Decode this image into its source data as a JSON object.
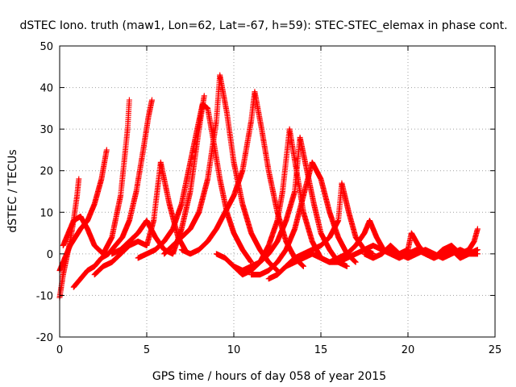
{
  "chart_data": {
    "type": "scatter",
    "title": "dSTEC Iono. truth (maw1, Lon=62, Lat=-67, h=59): STEC-STEC_elemax in phase cont.",
    "xlabel": "GPS time / hours of day 058 of year 2015",
    "ylabel": "dSTEC  / TECUs",
    "xlim": [
      0,
      25
    ],
    "ylim": [
      -20,
      50
    ],
    "xticks": [
      0,
      5,
      10,
      15,
      20,
      25
    ],
    "yticks": [
      -20,
      -10,
      0,
      10,
      20,
      30,
      40,
      50
    ],
    "grid": true,
    "marker": "+",
    "color": "#ff0000",
    "series": [
      {
        "x": [
          0.0,
          0.2,
          0.4,
          0.6,
          0.8,
          1.0,
          1.1
        ],
        "y": [
          -10.5,
          -5,
          -1,
          3,
          8,
          14,
          18
        ]
      },
      {
        "x": [
          0.0,
          0.3,
          0.6,
          0.9,
          1.2,
          1.6,
          2.0,
          2.4,
          2.7
        ],
        "y": [
          -4,
          -1,
          2,
          4,
          6,
          8,
          12,
          18,
          25
        ]
      },
      {
        "x": [
          0.2,
          0.5,
          0.8,
          1.2,
          1.6,
          2.0,
          2.5,
          3.0,
          3.5,
          3.9,
          4.0
        ],
        "y": [
          2,
          5,
          8,
          9,
          6,
          2,
          0,
          4,
          14,
          30,
          37
        ]
      },
      {
        "x": [
          0.8,
          1.2,
          1.6,
          2.0,
          2.4,
          2.8,
          3.2,
          3.6,
          4.0,
          4.4,
          4.8,
          5.1,
          5.3
        ],
        "y": [
          -8,
          -6,
          -4,
          -3,
          -1,
          0,
          2,
          4,
          8,
          15,
          25,
          33,
          37
        ]
      },
      {
        "x": [
          2.0,
          2.5,
          3.0,
          3.5,
          4.0,
          4.5,
          5.0,
          5.4,
          5.8,
          6.3,
          6.8,
          7.2
        ],
        "y": [
          -5,
          -3,
          -2,
          0,
          2,
          3,
          2,
          8,
          22,
          12,
          4,
          1
        ]
      },
      {
        "x": [
          3.0,
          3.5,
          4.0,
          4.5,
          5.0,
          5.5,
          6.0,
          6.5,
          7.0,
          7.5,
          8.0,
          8.3
        ],
        "y": [
          0,
          1,
          3,
          5,
          8,
          4,
          1,
          0,
          6,
          15,
          30,
          38
        ]
      },
      {
        "x": [
          4.5,
          5.0,
          5.5,
          6.0,
          6.5,
          7.0,
          7.4,
          7.8,
          8.2,
          8.5,
          8.8,
          9.2,
          9.6,
          10.0,
          10.5,
          11.0
        ],
        "y": [
          -1,
          0,
          1,
          3,
          6,
          12,
          20,
          28,
          36,
          35,
          28,
          18,
          10,
          5,
          1,
          -2
        ]
      },
      {
        "x": [
          6.0,
          6.5,
          7.0,
          7.5,
          8.0,
          8.5,
          9.0,
          9.2,
          9.6,
          10.0,
          10.5,
          11.0,
          11.5,
          12.0,
          12.5
        ],
        "y": [
          0,
          2,
          4,
          6,
          10,
          18,
          32,
          43,
          34,
          22,
          12,
          5,
          1,
          -2,
          -4
        ]
      },
      {
        "x": [
          7.0,
          7.5,
          8.0,
          8.5,
          9.0,
          9.5,
          10.0,
          10.5,
          11.0,
          11.2,
          11.6,
          12.0,
          12.5,
          13.0,
          13.5,
          14.0
        ],
        "y": [
          1,
          0,
          1,
          3,
          6,
          10,
          14,
          20,
          32,
          39,
          30,
          20,
          10,
          3,
          -1,
          -3
        ]
      },
      {
        "x": [
          9.0,
          9.5,
          10.0,
          10.5,
          11.0,
          11.5,
          12.0,
          12.5,
          12.8,
          13.2,
          13.6,
          14.0,
          14.5,
          15.0
        ],
        "y": [
          0,
          -1,
          -3,
          -5,
          -4,
          -2,
          2,
          8,
          15,
          30,
          20,
          10,
          3,
          -1
        ]
      },
      {
        "x": [
          10.0,
          10.5,
          11.0,
          11.5,
          12.0,
          12.5,
          13.0,
          13.5,
          13.8,
          14.2,
          14.6,
          15.0,
          15.5,
          16.0,
          16.5
        ],
        "y": [
          -3,
          -4,
          -3,
          -2,
          0,
          3,
          8,
          15,
          28,
          20,
          12,
          5,
          1,
          -2,
          -3
        ]
      },
      {
        "x": [
          11.0,
          11.5,
          12.0,
          12.5,
          13.0,
          13.5,
          14.0,
          14.5,
          15.0,
          15.5,
          16.0,
          16.5,
          17.0
        ],
        "y": [
          -5,
          -5,
          -4,
          -2,
          1,
          6,
          14,
          22,
          18,
          10,
          4,
          0,
          -2
        ]
      },
      {
        "x": [
          12.0,
          12.5,
          13.0,
          13.5,
          14.0,
          14.5,
          15.0,
          15.5,
          16.0,
          16.2,
          16.6,
          17.0,
          17.5,
          18.0
        ],
        "y": [
          -6,
          -5,
          -3,
          -1,
          0,
          1,
          2,
          4,
          8,
          17,
          10,
          4,
          1,
          0
        ]
      },
      {
        "x": [
          13.0,
          13.5,
          14.0,
          14.5,
          15.0,
          15.5,
          16.0,
          16.5,
          17.0,
          17.5,
          17.8,
          18.2,
          18.6
        ],
        "y": [
          -3,
          -2,
          -1,
          0,
          -1,
          -2,
          -1,
          0,
          2,
          5,
          8,
          4,
          1
        ]
      },
      {
        "x": [
          15.0,
          15.5,
          16.0,
          16.5,
          17.0,
          17.5,
          18.0,
          18.5,
          19.0,
          19.5,
          20.0,
          20.5,
          21.0,
          21.5,
          22.0,
          22.5,
          23.0,
          23.5,
          24.0
        ],
        "y": [
          -1,
          -2,
          -2,
          -1,
          0,
          1,
          2,
          1,
          0,
          -1,
          0,
          1,
          0,
          -1,
          0,
          1,
          -1,
          0,
          1
        ]
      },
      {
        "x": [
          17.5,
          18.0,
          18.5,
          19.0,
          19.5,
          20.0,
          20.2,
          20.6,
          21.0,
          21.5,
          22.0,
          22.5,
          23.0,
          23.5,
          23.8,
          24.0
        ],
        "y": [
          0,
          -1,
          0,
          2,
          0,
          1,
          5,
          2,
          0,
          -1,
          1,
          2,
          0,
          1,
          3,
          6
        ]
      },
      {
        "x": [
          19.0,
          19.5,
          20.0,
          20.5,
          21.0,
          21.5,
          22.0,
          22.5,
          23.0,
          23.5,
          24.0
        ],
        "y": [
          1,
          0,
          -1,
          0,
          1,
          0,
          -1,
          0,
          1,
          0,
          0
        ]
      }
    ]
  }
}
